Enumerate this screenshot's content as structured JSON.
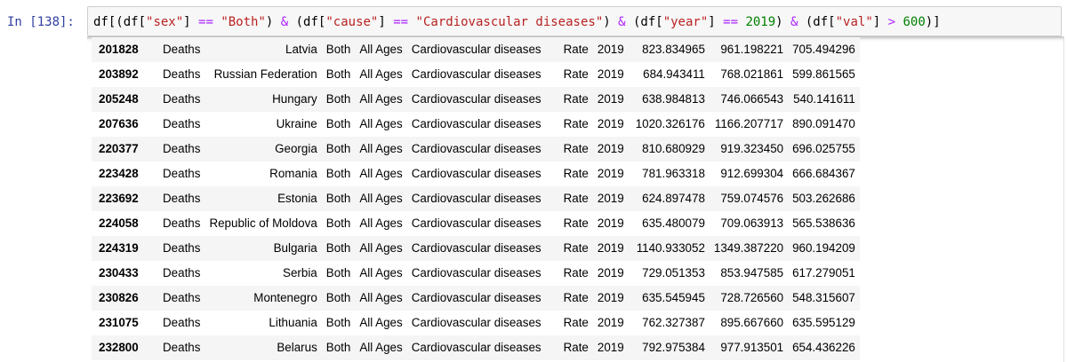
{
  "prompt": {
    "label": "In [138]:"
  },
  "code": {
    "tokens": [
      {
        "t": "df[(df[",
        "c": "p"
      },
      {
        "t": "\"sex\"",
        "c": "str"
      },
      {
        "t": "] ",
        "c": "p"
      },
      {
        "t": "==",
        "c": "op"
      },
      {
        "t": " ",
        "c": "p"
      },
      {
        "t": "\"Both\"",
        "c": "str"
      },
      {
        "t": ") ",
        "c": "p"
      },
      {
        "t": "&",
        "c": "op"
      },
      {
        "t": " (df[",
        "c": "p"
      },
      {
        "t": "\"cause\"",
        "c": "str"
      },
      {
        "t": "] ",
        "c": "p"
      },
      {
        "t": "==",
        "c": "op"
      },
      {
        "t": " ",
        "c": "p"
      },
      {
        "t": "\"Cardiovascular diseases\"",
        "c": "str"
      },
      {
        "t": ") ",
        "c": "p"
      },
      {
        "t": "&",
        "c": "op"
      },
      {
        "t": " (df[",
        "c": "p"
      },
      {
        "t": "\"year\"",
        "c": "str"
      },
      {
        "t": "] ",
        "c": "p"
      },
      {
        "t": "==",
        "c": "op"
      },
      {
        "t": " ",
        "c": "p"
      },
      {
        "t": "2019",
        "c": "num"
      },
      {
        "t": ") ",
        "c": "p"
      },
      {
        "t": "&",
        "c": "op"
      },
      {
        "t": " (df[",
        "c": "p"
      },
      {
        "t": "\"val\"",
        "c": "str"
      },
      {
        "t": "] ",
        "c": "p"
      },
      {
        "t": ">",
        "c": "op"
      },
      {
        "t": " ",
        "c": "p"
      },
      {
        "t": "600",
        "c": "num"
      },
      {
        "t": ")]",
        "c": "p"
      }
    ]
  },
  "table": {
    "rows": [
      {
        "index": "201828",
        "measure": "Deaths",
        "location": "Latvia",
        "sex": "Both",
        "age": "All Ages",
        "cause": "Cardiovascular diseases",
        "metric": "Rate",
        "year": "2019",
        "val": "823.834965",
        "upper": "961.198221",
        "lower": "705.494296"
      },
      {
        "index": "203892",
        "measure": "Deaths",
        "location": "Russian Federation",
        "sex": "Both",
        "age": "All Ages",
        "cause": "Cardiovascular diseases",
        "metric": "Rate",
        "year": "2019",
        "val": "684.943411",
        "upper": "768.021861",
        "lower": "599.861565"
      },
      {
        "index": "205248",
        "measure": "Deaths",
        "location": "Hungary",
        "sex": "Both",
        "age": "All Ages",
        "cause": "Cardiovascular diseases",
        "metric": "Rate",
        "year": "2019",
        "val": "638.984813",
        "upper": "746.066543",
        "lower": "540.141611"
      },
      {
        "index": "207636",
        "measure": "Deaths",
        "location": "Ukraine",
        "sex": "Both",
        "age": "All Ages",
        "cause": "Cardiovascular diseases",
        "metric": "Rate",
        "year": "2019",
        "val": "1020.326176",
        "upper": "1166.207717",
        "lower": "890.091470"
      },
      {
        "index": "220377",
        "measure": "Deaths",
        "location": "Georgia",
        "sex": "Both",
        "age": "All Ages",
        "cause": "Cardiovascular diseases",
        "metric": "Rate",
        "year": "2019",
        "val": "810.680929",
        "upper": "919.323450",
        "lower": "696.025755"
      },
      {
        "index": "223428",
        "measure": "Deaths",
        "location": "Romania",
        "sex": "Both",
        "age": "All Ages",
        "cause": "Cardiovascular diseases",
        "metric": "Rate",
        "year": "2019",
        "val": "781.963318",
        "upper": "912.699304",
        "lower": "666.684367"
      },
      {
        "index": "223692",
        "measure": "Deaths",
        "location": "Estonia",
        "sex": "Both",
        "age": "All Ages",
        "cause": "Cardiovascular diseases",
        "metric": "Rate",
        "year": "2019",
        "val": "624.897478",
        "upper": "759.074576",
        "lower": "503.262686"
      },
      {
        "index": "224058",
        "measure": "Deaths",
        "location": "Republic of Moldova",
        "sex": "Both",
        "age": "All Ages",
        "cause": "Cardiovascular diseases",
        "metric": "Rate",
        "year": "2019",
        "val": "635.480079",
        "upper": "709.063913",
        "lower": "565.538636"
      },
      {
        "index": "224319",
        "measure": "Deaths",
        "location": "Bulgaria",
        "sex": "Both",
        "age": "All Ages",
        "cause": "Cardiovascular diseases",
        "metric": "Rate",
        "year": "2019",
        "val": "1140.933052",
        "upper": "1349.387220",
        "lower": "960.194209"
      },
      {
        "index": "230433",
        "measure": "Deaths",
        "location": "Serbia",
        "sex": "Both",
        "age": "All Ages",
        "cause": "Cardiovascular diseases",
        "metric": "Rate",
        "year": "2019",
        "val": "729.051353",
        "upper": "853.947585",
        "lower": "617.279051"
      },
      {
        "index": "230826",
        "measure": "Deaths",
        "location": "Montenegro",
        "sex": "Both",
        "age": "All Ages",
        "cause": "Cardiovascular diseases",
        "metric": "Rate",
        "year": "2019",
        "val": "635.545945",
        "upper": "728.726560",
        "lower": "548.315607"
      },
      {
        "index": "231075",
        "measure": "Deaths",
        "location": "Lithuania",
        "sex": "Both",
        "age": "All Ages",
        "cause": "Cardiovascular diseases",
        "metric": "Rate",
        "year": "2019",
        "val": "762.327387",
        "upper": "895.667660",
        "lower": "635.595129"
      },
      {
        "index": "232800",
        "measure": "Deaths",
        "location": "Belarus",
        "sex": "Both",
        "age": "All Ages",
        "cause": "Cardiovascular diseases",
        "metric": "Rate",
        "year": "2019",
        "val": "792.975384",
        "upper": "977.913501",
        "lower": "654.436226"
      }
    ]
  }
}
